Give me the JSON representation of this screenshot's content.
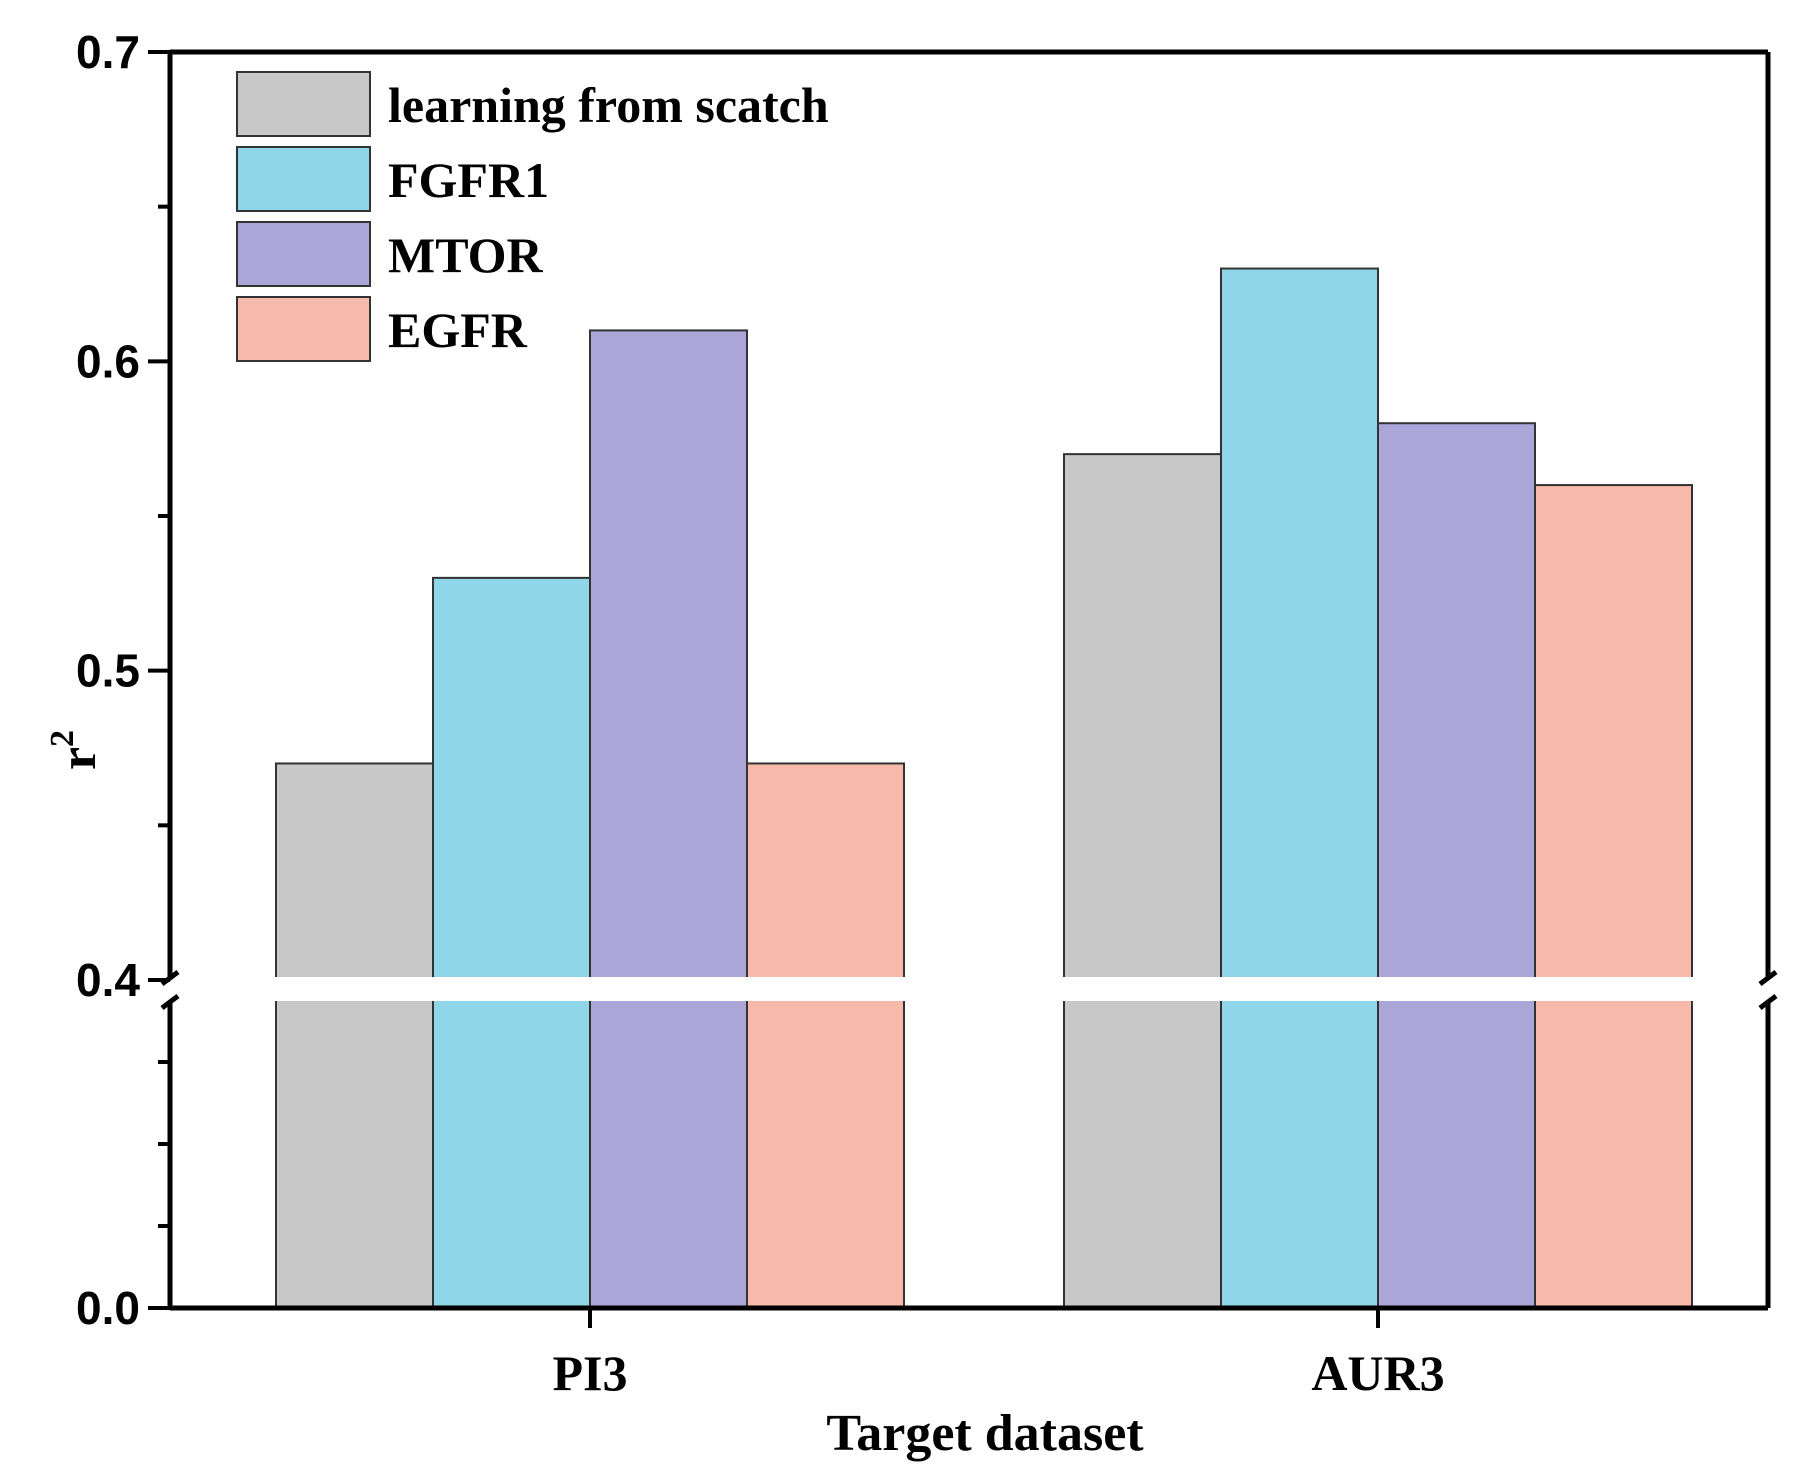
{
  "chart_data": {
    "type": "bar",
    "categories": [
      "PI3",
      "AUR3"
    ],
    "series": [
      {
        "name": "learning from scatch",
        "color": "#c8c8c8",
        "values": [
          0.47,
          0.57
        ]
      },
      {
        "name": "FGFR1",
        "color": "#8fd6e8",
        "values": [
          0.53,
          0.63
        ]
      },
      {
        "name": "MTOR",
        "color": "#aca5d8",
        "values": [
          0.61,
          0.58
        ]
      },
      {
        "name": "EGFR",
        "color": "#f6b9aa",
        "values": [
          0.47,
          0.56
        ]
      }
    ],
    "xlabel": "Target dataset",
    "ylabel": "r",
    "ylabel_superscript": "2",
    "y_axis_break": {
      "lower_range": [
        0.0,
        0.4
      ],
      "upper_range": [
        0.4,
        0.7
      ]
    },
    "yticks_lower": [
      "0.0"
    ],
    "yticks_upper": [
      "0.4",
      "0.5",
      "0.6",
      "0.7"
    ],
    "legend_position": "top-left",
    "grid": false
  }
}
